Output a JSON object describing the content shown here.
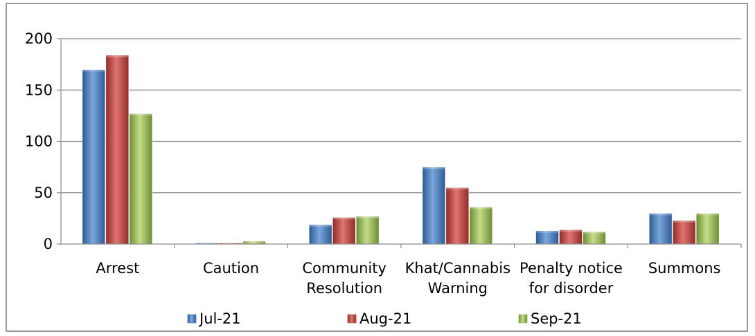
{
  "chart_data": {
    "type": "bar",
    "categories": [
      [
        "Arrest"
      ],
      [
        "Caution"
      ],
      [
        "Community",
        "Resolution"
      ],
      [
        "Khat/Cannabis",
        "Warning"
      ],
      [
        "Penalty notice",
        "for disorder"
      ],
      [
        "Summons"
      ]
    ],
    "series": [
      {
        "name": "Jul-21",
        "color": "#4f81bd",
        "values": [
          170,
          1,
          19,
          75,
          13,
          30
        ]
      },
      {
        "name": "Aug-21",
        "color": "#c0504d",
        "values": [
          184,
          0,
          26,
          55,
          14,
          23
        ]
      },
      {
        "name": "Sep-21",
        "color": "#9bbb59",
        "values": [
          127,
          3,
          27,
          36,
          12,
          30
        ]
      }
    ],
    "ylim": [
      0,
      200
    ],
    "yticks": [
      0,
      50,
      100,
      150,
      200
    ],
    "grid": true,
    "legend": "bottom"
  }
}
